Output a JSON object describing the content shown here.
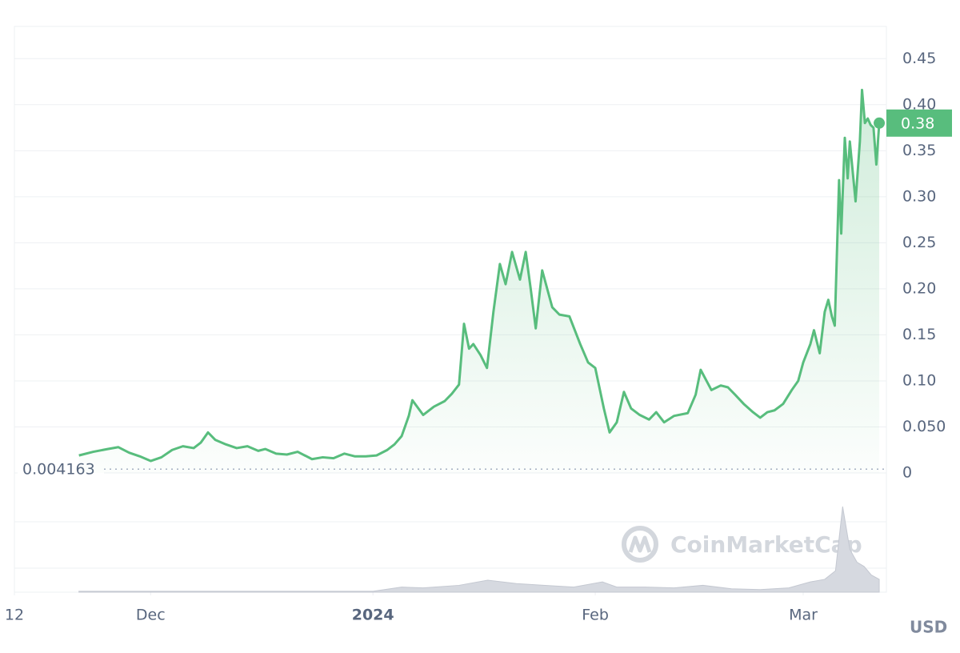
{
  "chart_data": {
    "type": "line",
    "color": "#58bd7d",
    "xlim": [
      0,
      121.6
    ],
    "ylim": [
      0,
      0.485
    ],
    "xticks": [
      {
        "value": 0,
        "label": "12"
      },
      {
        "value": 19,
        "label": "Dec"
      },
      {
        "value": 50,
        "label": "2024"
      },
      {
        "value": 81,
        "label": "Feb"
      },
      {
        "value": 110,
        "label": "Mar"
      }
    ],
    "yticks": [
      0,
      {
        "value": 0.05,
        "label": "0.050"
      },
      {
        "value": 0.1,
        "label": "0.10"
      },
      0.15,
      {
        "value": 0.2,
        "label": "0.20"
      },
      0.25,
      {
        "value": 0.3,
        "label": "0.30"
      },
      0.35,
      {
        "value": 0.4,
        "label": "0.40"
      },
      0.45
    ],
    "grid": true,
    "x": [
      9,
      11,
      13,
      14.5,
      16,
      17.5,
      19,
      20.5,
      22,
      23.5,
      25,
      26,
      27,
      28,
      29.5,
      31,
      32.5,
      34,
      35,
      36.5,
      38,
      39.5,
      41.5,
      43,
      44.5,
      46,
      47.5,
      49,
      50.5,
      52,
      53,
      54,
      55,
      55.5,
      57,
      58.5,
      60,
      61,
      62,
      62.7,
      63.4,
      64,
      65,
      65.9,
      66.8,
      67.7,
      68.5,
      69.4,
      70.5,
      71.3,
      72,
      72.7,
      73.6,
      75,
      76,
      77.4,
      78.9,
      80,
      81,
      82.2,
      83,
      84,
      85,
      86,
      87.2,
      88.5,
      89.5,
      90.6,
      92,
      93.9,
      95,
      95.7,
      97.2,
      98.5,
      99.5,
      100.5,
      101.7,
      103,
      104,
      105,
      106,
      107.2,
      108.4,
      109.3,
      110,
      111,
      111.5,
      112.3,
      113,
      113.5,
      114,
      114.4,
      115,
      115.3,
      115.8,
      116.2,
      116.5,
      117.3,
      117.9,
      118.2,
      118.6,
      119,
      119.4,
      119.8,
      120.2,
      120.6
    ],
    "values": [
      0.019,
      0.023,
      0.026,
      0.028,
      0.022,
      0.018,
      0.013,
      0.017,
      0.025,
      0.029,
      0.027,
      0.033,
      0.044,
      0.036,
      0.031,
      0.027,
      0.029,
      0.024,
      0.026,
      0.021,
      0.02,
      0.023,
      0.015,
      0.017,
      0.016,
      0.021,
      0.018,
      0.018,
      0.019,
      0.025,
      0.031,
      0.04,
      0.062,
      0.079,
      0.063,
      0.072,
      0.078,
      0.086,
      0.096,
      0.162,
      0.135,
      0.14,
      0.128,
      0.114,
      0.175,
      0.227,
      0.205,
      0.24,
      0.21,
      0.24,
      0.2,
      0.157,
      0.22,
      0.18,
      0.172,
      0.17,
      0.14,
      0.12,
      0.114,
      0.07,
      0.044,
      0.055,
      0.088,
      0.07,
      0.063,
      0.058,
      0.066,
      0.055,
      0.062,
      0.065,
      0.085,
      0.112,
      0.09,
      0.095,
      0.093,
      0.085,
      0.075,
      0.066,
      0.06,
      0.066,
      0.068,
      0.075,
      0.09,
      0.1,
      0.12,
      0.14,
      0.155,
      0.13,
      0.175,
      0.188,
      0.17,
      0.16,
      0.318,
      0.26,
      0.364,
      0.32,
      0.36,
      0.295,
      0.36,
      0.416,
      0.38,
      0.385,
      0.378,
      0.375,
      0.335,
      0.38
    ],
    "current_price": 0.38,
    "reference_price": 0.004163,
    "volume": {
      "x": [
        9,
        20,
        30,
        40,
        50,
        54,
        57,
        62,
        66,
        70,
        74,
        78,
        82,
        84,
        88,
        92,
        96,
        100,
        104,
        108,
        111,
        113,
        114.5,
        115.5,
        116.5,
        117.5,
        118.5,
        119.5,
        120.6
      ],
      "values": [
        1,
        1,
        1,
        1,
        1,
        6,
        5,
        8,
        14,
        10,
        8,
        6,
        12,
        6,
        6,
        5,
        8,
        4,
        3,
        5,
        12,
        15,
        25,
        100,
        50,
        35,
        30,
        20,
        15
      ],
      "ylim": [
        0,
        100
      ]
    },
    "watermark": "CoinMarketCap",
    "currency": "USD"
  }
}
